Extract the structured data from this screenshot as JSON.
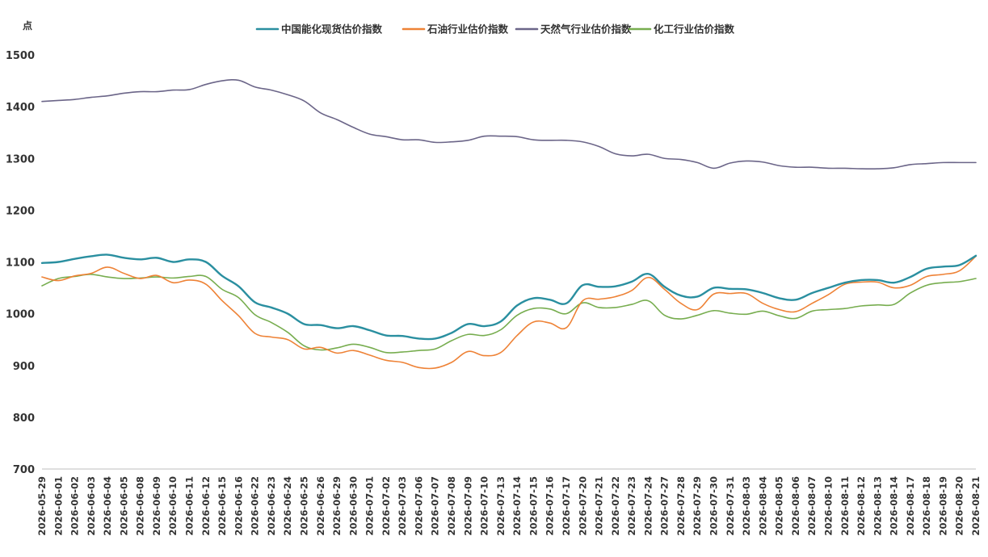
{
  "chart_data": {
    "type": "line",
    "y_unit": "点",
    "ylim": [
      700,
      1500
    ],
    "y_ticks": [
      700,
      800,
      900,
      1000,
      1100,
      1200,
      1300,
      1400,
      1500
    ],
    "grid": false,
    "legend_position": "top",
    "x": [
      "2026-05-29",
      "2026-06-01",
      "2026-06-02",
      "2026-06-03",
      "2026-06-04",
      "2026-06-05",
      "2026-06-08",
      "2026-06-09",
      "2026-06-10",
      "2026-06-11",
      "2026-06-12",
      "2026-06-15",
      "2026-06-16",
      "2026-06-22",
      "2026-06-23",
      "2026-06-24",
      "2026-06-25",
      "2026-06-26",
      "2026-06-29",
      "2026-06-30",
      "2026-07-01",
      "2026-07-02",
      "2026-07-03",
      "2026-07-06",
      "2026-07-07",
      "2026-07-08",
      "2026-07-09",
      "2026-07-10",
      "2026-07-13",
      "2026-07-14",
      "2026-07-15",
      "2026-07-16",
      "2026-07-17",
      "2026-07-20",
      "2026-07-21",
      "2026-07-22",
      "2026-07-23",
      "2026-07-24",
      "2026-07-27",
      "2026-07-28",
      "2026-07-29",
      "2026-07-30",
      "2026-07-31",
      "2026-08-03",
      "2026-08-04",
      "2026-08-05",
      "2026-08-06",
      "2026-08-07",
      "2026-08-10",
      "2026-08-11",
      "2026-08-12",
      "2026-08-13",
      "2026-08-14",
      "2026-08-17",
      "2026-08-18",
      "2026-08-19",
      "2026-08-20",
      "2026-08-21"
    ],
    "series": [
      {
        "name": "中国能化现货估价指数",
        "color": "#2a8fa0",
        "values": [
          1098,
          1100,
          1106,
          1111,
          1114,
          1108,
          1105,
          1108,
          1100,
          1105,
          1100,
          1073,
          1053,
          1022,
          1012,
          1000,
          980,
          978,
          972,
          976,
          968,
          958,
          957,
          952,
          952,
          963,
          980,
          976,
          985,
          1016,
          1030,
          1027,
          1020,
          1055,
          1052,
          1053,
          1062,
          1077,
          1052,
          1035,
          1033,
          1050,
          1048,
          1047,
          1040,
          1030,
          1027,
          1040,
          1050,
          1060,
          1065,
          1065,
          1060,
          1071,
          1087,
          1091,
          1094,
          1112
        ]
      },
      {
        "name": "石油行业估价指数",
        "color": "#ee8236",
        "values": [
          1071,
          1064,
          1073,
          1078,
          1090,
          1078,
          1068,
          1074,
          1060,
          1065,
          1057,
          1025,
          996,
          962,
          955,
          950,
          932,
          935,
          924,
          929,
          920,
          910,
          906,
          896,
          895,
          906,
          927,
          919,
          925,
          958,
          984,
          982,
          973,
          1025,
          1028,
          1033,
          1045,
          1070,
          1047,
          1020,
          1008,
          1038,
          1039,
          1039,
          1020,
          1008,
          1004,
          1020,
          1037,
          1057,
          1061,
          1061,
          1050,
          1055,
          1072,
          1076,
          1083,
          1111
        ]
      },
      {
        "name": "天然气行业估价指数",
        "color": "#6b6588",
        "values": [
          1410,
          1412,
          1414,
          1418,
          1421,
          1426,
          1429,
          1429,
          1432,
          1433,
          1443,
          1450,
          1451,
          1438,
          1432,
          1423,
          1411,
          1388,
          1375,
          1360,
          1347,
          1342,
          1336,
          1336,
          1331,
          1332,
          1335,
          1343,
          1343,
          1342,
          1336,
          1335,
          1335,
          1332,
          1323,
          1309,
          1305,
          1308,
          1300,
          1298,
          1292,
          1281,
          1291,
          1295,
          1293,
          1286,
          1283,
          1283,
          1281,
          1281,
          1280,
          1280,
          1282,
          1288,
          1290,
          1292,
          1292,
          1292
        ]
      },
      {
        "name": "化工行业估价指数",
        "color": "#77ad4f",
        "values": [
          1054,
          1068,
          1072,
          1076,
          1071,
          1068,
          1069,
          1071,
          1069,
          1072,
          1072,
          1047,
          1031,
          998,
          983,
          964,
          938,
          930,
          934,
          941,
          935,
          925,
          926,
          929,
          932,
          948,
          960,
          958,
          969,
          997,
          1010,
          1009,
          1000,
          1021,
          1012,
          1012,
          1018,
          1025,
          997,
          990,
          997,
          1006,
          1001,
          999,
          1005,
          996,
          991,
          1005,
          1008,
          1010,
          1015,
          1017,
          1018,
          1040,
          1055,
          1060,
          1062,
          1068
        ]
      }
    ]
  }
}
